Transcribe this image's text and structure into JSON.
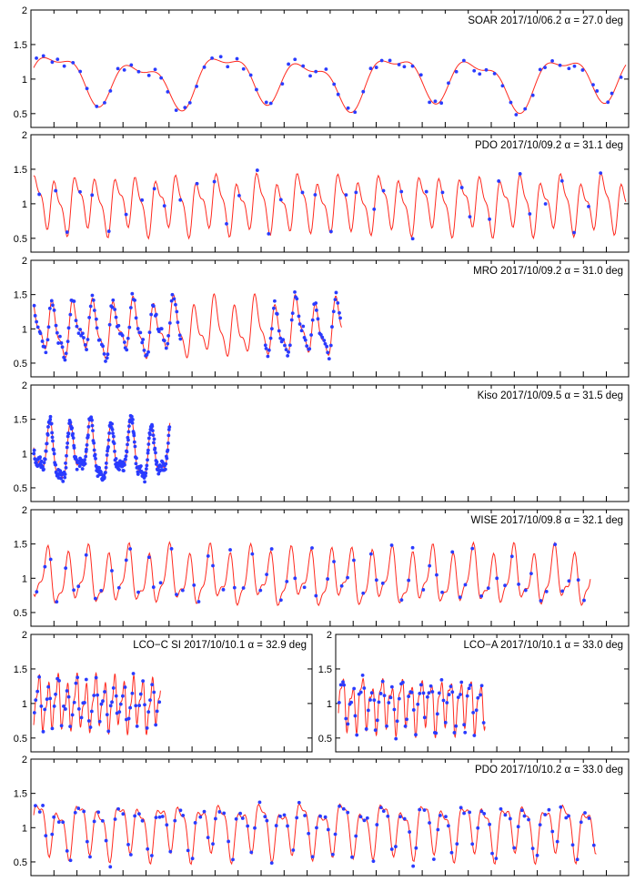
{
  "figure": {
    "y_tick_labels": [
      "0.5",
      "1",
      "1.5",
      "2"
    ]
  },
  "colors": {
    "model": "#ff2a1f",
    "points": "#2a3bff",
    "frame": "#000000"
  },
  "chart_data": [
    {
      "type": "line",
      "label": "SOAR   2017/10/06.2   α = 27.0 deg",
      "ylim": [
        0.3,
        2
      ],
      "duration": 0.24,
      "amp": 0.42,
      "period": 0.0342,
      "x_model": [
        0.0,
        0.24
      ],
      "x_obs": [
        0.0,
        0.24
      ],
      "n_obs": 80
    },
    {
      "type": "line",
      "label": "PDO   2017/10/09.2   α = 31.1 deg",
      "ylim": [
        0.3,
        2
      ],
      "duration": 1.0,
      "amp": 0.45,
      "period": 0.0342,
      "x_model": [
        0.0,
        1.0
      ],
      "x_obs": [
        0.0,
        0.98
      ],
      "n_obs": 40
    },
    {
      "type": "line",
      "label": "MRO   2017/10/09.2   α = 31.0 deg",
      "ylim": [
        0.3,
        2
      ],
      "duration": 1.0,
      "amp": 0.45,
      "period": 0.0342,
      "x_model": [
        0.0,
        0.52
      ],
      "x_obs_segments": [
        [
          0.0,
          0.25,
          110
        ],
        [
          0.39,
          0.52,
          55
        ]
      ]
    },
    {
      "type": "line",
      "label": "Kiso   2017/10/09.5   α = 31.5 deg",
      "ylim": [
        0.3,
        2
      ],
      "duration": 1.0,
      "amp": 0.48,
      "period": 0.0342,
      "x_model": [
        0.0,
        0.23
      ],
      "x_obs": [
        0.0,
        0.23
      ],
      "n_obs": 300
    },
    {
      "type": "line",
      "label": "WISE   2017/10/09.8   α = 32.1 deg",
      "ylim": [
        0.3,
        2
      ],
      "duration": 1.0,
      "amp": 0.45,
      "period": 0.0342,
      "x_model": [
        0.0,
        0.94
      ],
      "x_obs": [
        0.0,
        0.94
      ],
      "n_obs": 75
    },
    {
      "type": "line",
      "label": "LCO−C SI   2017/10/10.1   α = 32.9 deg",
      "ylim": [
        0.3,
        2
      ],
      "duration": 1.0,
      "amp": 0.42,
      "period": 0.0342,
      "x_model": [
        0.0,
        0.46
      ],
      "x_obs": [
        0.0,
        0.46
      ],
      "n_obs": 70
    },
    {
      "type": "line",
      "label": "LCO−A   2017/10/10.1   α = 33.0 deg",
      "ylim": [
        0.3,
        2
      ],
      "duration": 1.0,
      "amp": 0.42,
      "period": 0.0342,
      "x_model": [
        0.0,
        0.51
      ],
      "x_obs": [
        0.0,
        0.51
      ],
      "n_obs": 80
    },
    {
      "type": "line",
      "label": "PDO   2017/10/10.2   α = 33.0 deg",
      "ylim": [
        0.3,
        2
      ],
      "duration": 1.0,
      "amp": 0.45,
      "period": 0.0342,
      "x_model": [
        0.0,
        0.95
      ],
      "x_obs": [
        0.0,
        0.95
      ],
      "n_obs": 140
    }
  ]
}
